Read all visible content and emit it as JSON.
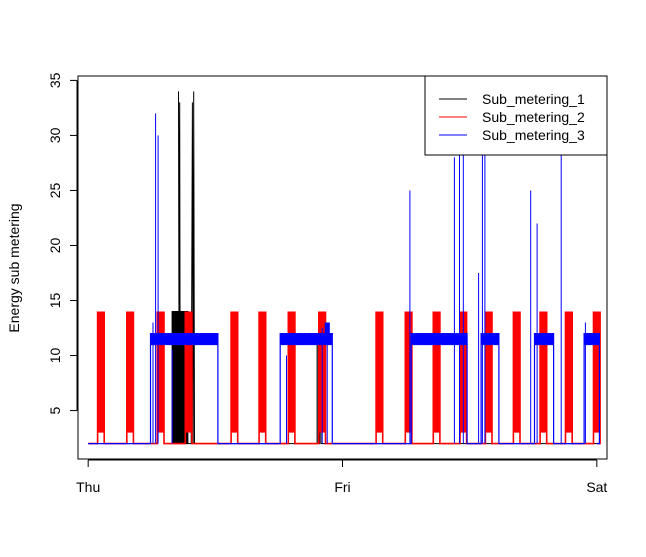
{
  "chart_data": {
    "type": "line",
    "title": "",
    "xlabel": "",
    "ylabel": "Energy sub metering",
    "x_tick_labels": [
      "Thu",
      "Fri",
      "Sat"
    ],
    "x_tick_values": [
      0,
      1,
      2
    ],
    "xlim": [
      -0.04,
      2.04
    ],
    "ylim": [
      0.6,
      35.4
    ],
    "y_ticks": [
      5,
      10,
      15,
      20,
      25,
      30,
      35
    ],
    "grid": false,
    "legend_position": "top-right",
    "series": [
      {
        "name": "Sub_metering_1",
        "color": "#000000",
        "baseline": 2,
        "points": [
          [
            0.33,
            2
          ],
          [
            0.335,
            13
          ],
          [
            0.34,
            2
          ],
          [
            0.345,
            12
          ],
          [
            0.35,
            2
          ],
          [
            0.33,
            2
          ],
          [
            0.33,
            14
          ],
          [
            0.332,
            14
          ],
          [
            0.332,
            2
          ],
          [
            0.334,
            2
          ],
          [
            0.334,
            14
          ],
          [
            0.336,
            14
          ],
          [
            0.336,
            2
          ],
          [
            0.338,
            2
          ],
          [
            0.338,
            14
          ],
          [
            0.34,
            14
          ],
          [
            0.34,
            2
          ],
          [
            0.342,
            2
          ],
          [
            0.342,
            14
          ],
          [
            0.344,
            14
          ],
          [
            0.344,
            2
          ],
          [
            0.346,
            2
          ],
          [
            0.346,
            14
          ],
          [
            0.348,
            14
          ],
          [
            0.348,
            2
          ],
          [
            0.35,
            2
          ],
          [
            0.35,
            14
          ],
          [
            0.352,
            14
          ],
          [
            0.352,
            2
          ],
          [
            0.354,
            2
          ],
          [
            0.354,
            14
          ],
          [
            0.356,
            14
          ],
          [
            0.356,
            2
          ],
          [
            0.358,
            2
          ],
          [
            0.358,
            14
          ],
          [
            0.36,
            14
          ],
          [
            0.36,
            2
          ],
          [
            0.36,
            2
          ],
          [
            0.355,
            34
          ],
          [
            0.358,
            2
          ],
          [
            0.36,
            33
          ],
          [
            0.362,
            2
          ],
          [
            0.365,
            2
          ],
          [
            0.365,
            14
          ],
          [
            0.368,
            14
          ],
          [
            0.368,
            2
          ],
          [
            0.37,
            2
          ],
          [
            0.37,
            14
          ],
          [
            0.372,
            14
          ],
          [
            0.372,
            2
          ],
          [
            0.375,
            2
          ],
          [
            0.375,
            14
          ],
          [
            0.378,
            14
          ],
          [
            0.378,
            2
          ],
          [
            0.38,
            2
          ],
          [
            0.38,
            14
          ],
          [
            0.382,
            14
          ],
          [
            0.382,
            2
          ],
          [
            0.385,
            2
          ],
          [
            0.385,
            14
          ],
          [
            0.388,
            14
          ],
          [
            0.388,
            2
          ],
          [
            0.39,
            2
          ],
          [
            0.39,
            14
          ],
          [
            0.392,
            14
          ],
          [
            0.392,
            2
          ],
          [
            0.405,
            2
          ],
          [
            0.41,
            33
          ],
          [
            0.413,
            2
          ],
          [
            0.415,
            34
          ],
          [
            0.418,
            2
          ],
          [
            0.9,
            2
          ],
          [
            0.9,
            12
          ],
          [
            0.905,
            12
          ],
          [
            0.905,
            2
          ],
          [
            0.91,
            2
          ],
          [
            0.91,
            13
          ],
          [
            0.915,
            13
          ],
          [
            0.915,
            2
          ],
          [
            2.0,
            2
          ]
        ]
      },
      {
        "name": "Sub_metering_2",
        "color": "#ff0000",
        "baseline": 2,
        "pulse_centers": [
          0.05,
          0.165,
          0.285,
          0.395,
          0.575,
          0.685,
          0.8,
          0.92,
          1.145,
          1.26,
          1.37,
          1.475,
          1.575,
          1.685,
          1.79,
          1.89,
          2.0
        ],
        "pulse_peak": 14,
        "pulse_side_level": 8,
        "pulse_foot_level": 3,
        "pulse_width": 0.026
      },
      {
        "name": "Sub_metering_3",
        "color": "#0000ff",
        "baseline": 2,
        "band_level": 11.5,
        "band_spans": [
          [
            0.245,
            0.51
          ],
          [
            0.755,
            0.96
          ],
          [
            1.27,
            1.49
          ],
          [
            1.545,
            1.615
          ],
          [
            1.755,
            1.83
          ],
          [
            1.95,
            2.01
          ]
        ],
        "spikes": [
          [
            0.255,
            13
          ],
          [
            0.265,
            32
          ],
          [
            0.275,
            30
          ],
          [
            0.33,
            10.5
          ],
          [
            0.78,
            10
          ],
          [
            0.92,
            12.5
          ],
          [
            0.94,
            13
          ],
          [
            1.265,
            25
          ],
          [
            1.44,
            28
          ],
          [
            1.46,
            35
          ],
          [
            1.475,
            35
          ],
          [
            1.535,
            17.5
          ],
          [
            1.55,
            30
          ],
          [
            1.56,
            35
          ],
          [
            1.74,
            25
          ],
          [
            1.765,
            22
          ],
          [
            1.86,
            29
          ],
          [
            1.955,
            13
          ]
        ],
        "step_block": [
          0.93,
          0.95,
          13
        ]
      }
    ]
  }
}
